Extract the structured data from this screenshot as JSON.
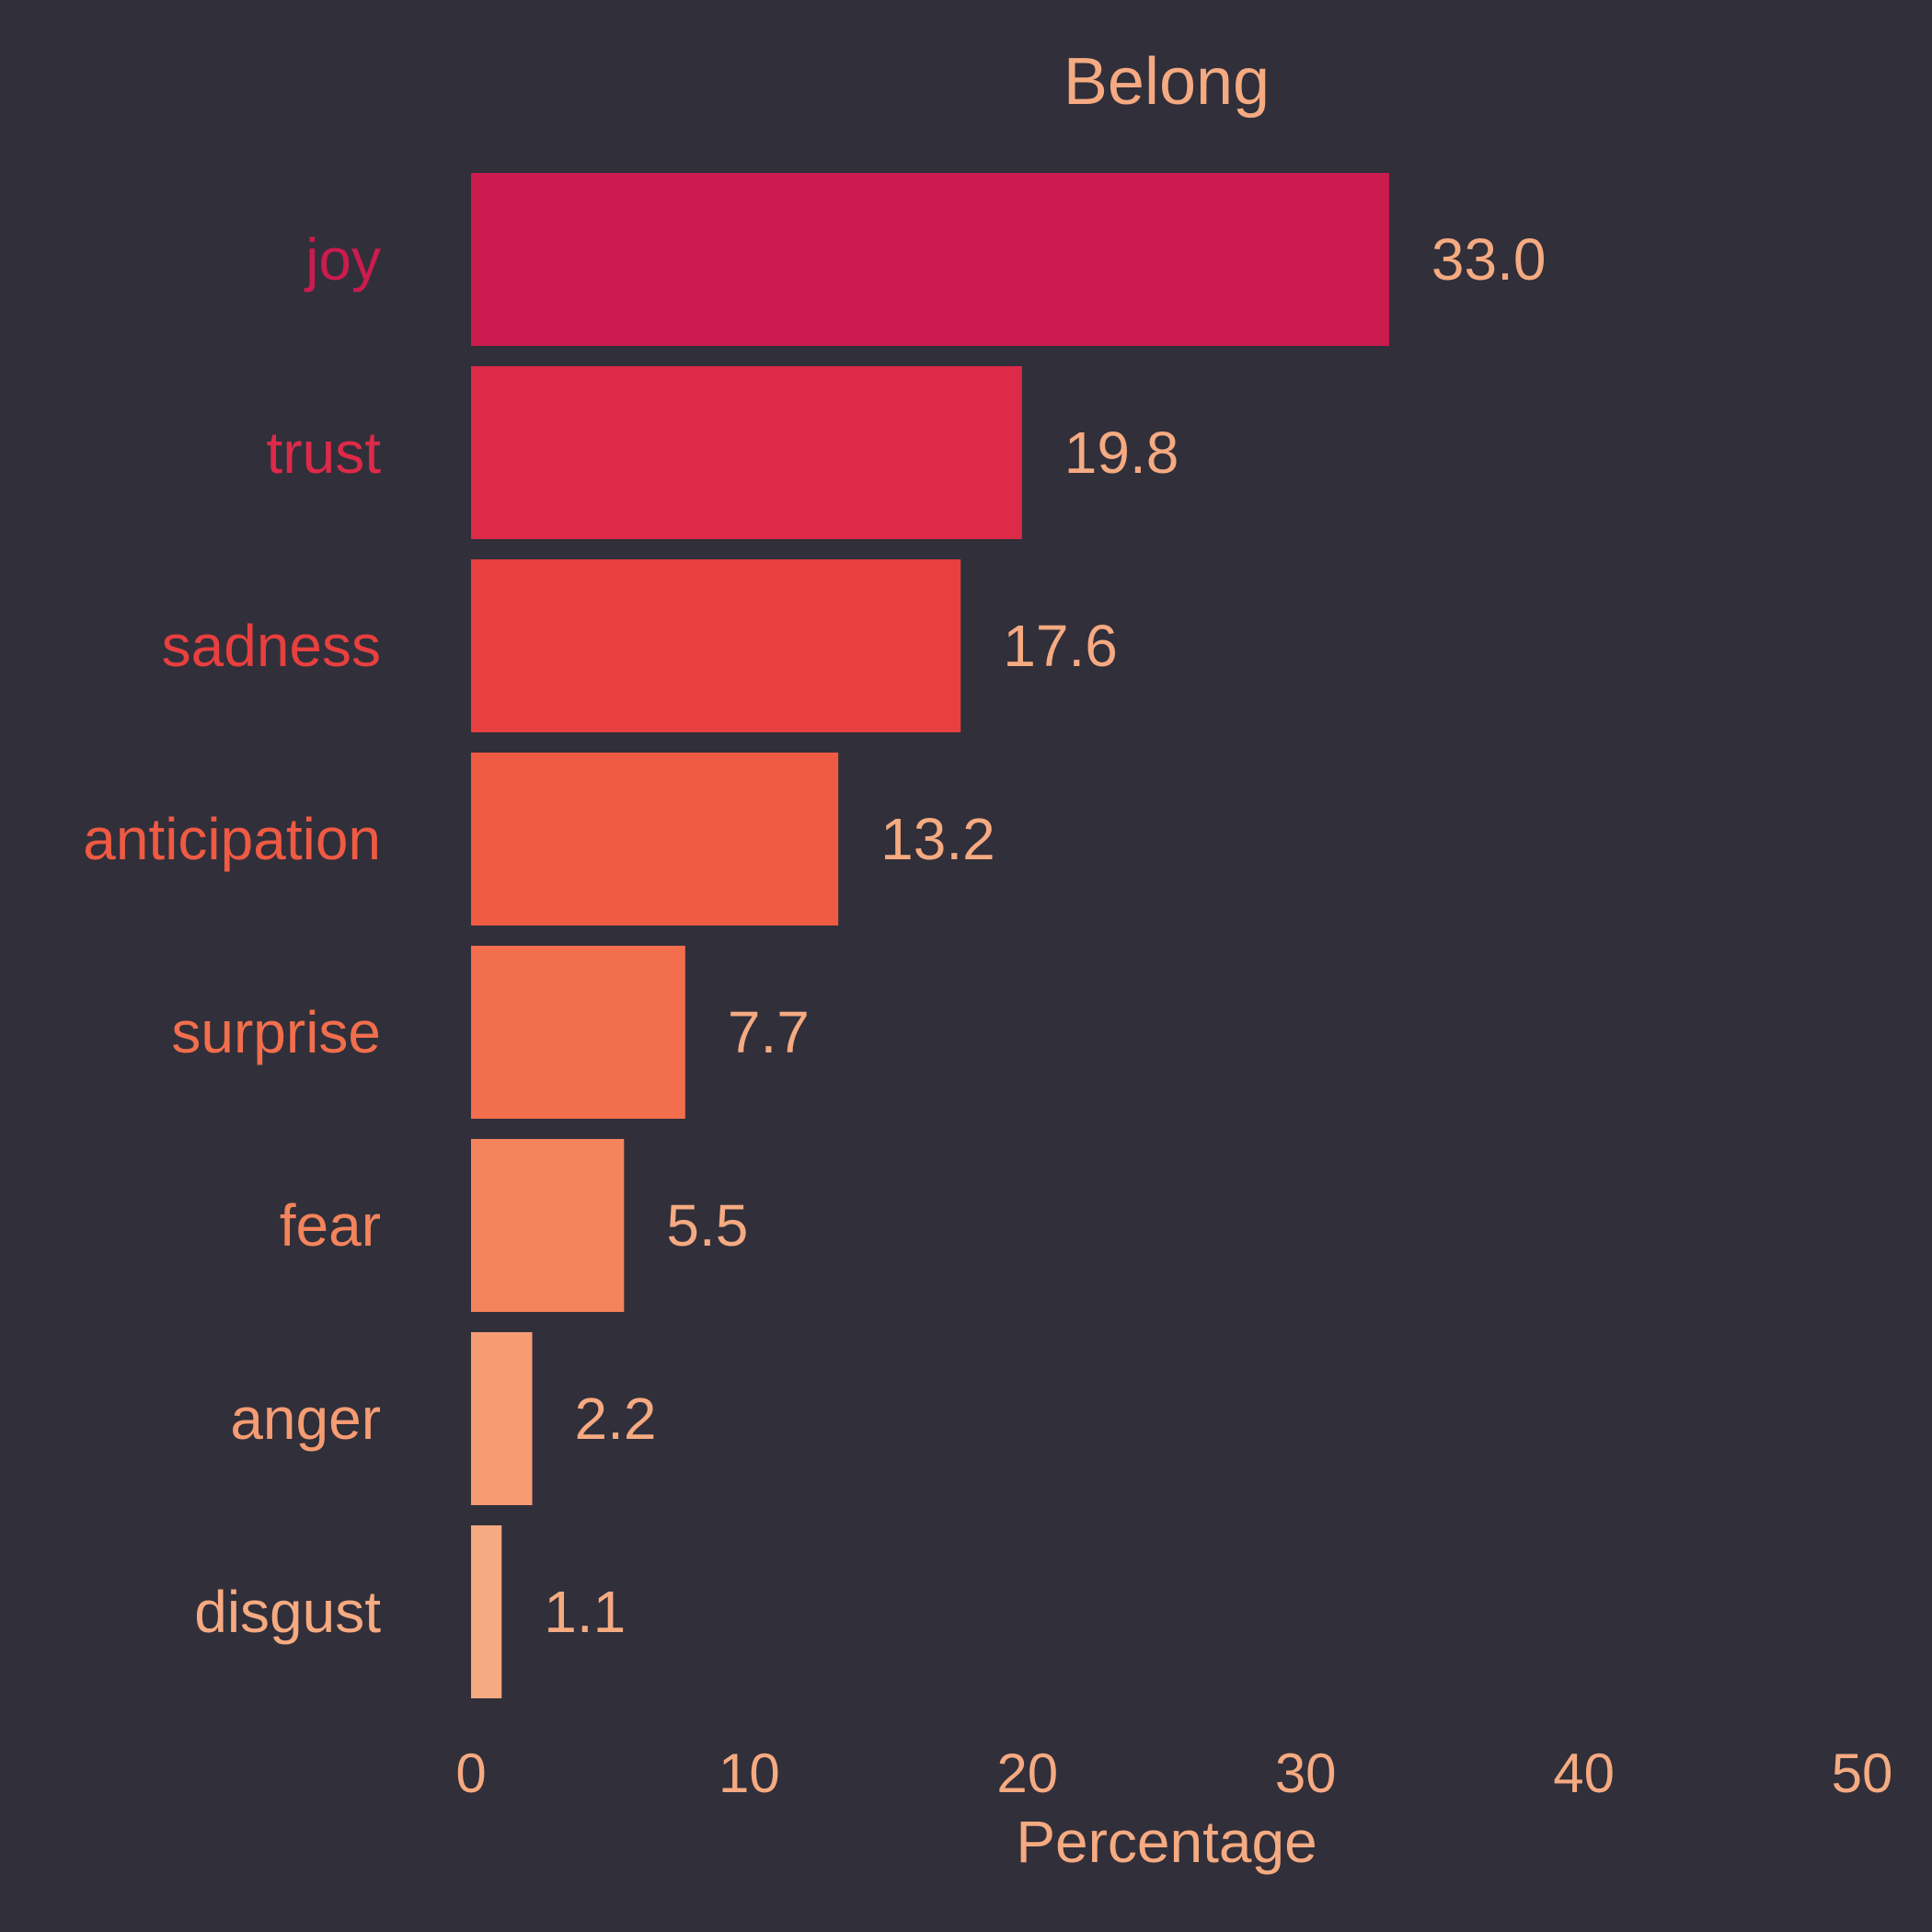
{
  "chart_data": {
    "type": "bar",
    "orientation": "horizontal",
    "title": "Belong",
    "xlabel": "Percentage",
    "ylabel": "",
    "xlim": [
      0,
      50
    ],
    "xticks": [
      "0",
      "10",
      "20",
      "30",
      "40",
      "50"
    ],
    "categories": [
      "joy",
      "trust",
      "sadness",
      "anticipation",
      "surprise",
      "fear",
      "anger",
      "disgust"
    ],
    "values": [
      33.0,
      19.8,
      17.6,
      13.2,
      7.7,
      5.5,
      2.2,
      1.1
    ],
    "value_labels": [
      "33.0",
      "19.8",
      "17.6",
      "13.2",
      "7.7",
      "5.5",
      "2.2",
      "1.1"
    ],
    "bar_colors": [
      "#CB1B4F",
      "#DC2A48",
      "#E83F3F",
      "#EF5A43",
      "#F26E4C",
      "#F4845C",
      "#F69C73",
      "#F5AA81"
    ],
    "grid": false,
    "legend": "none"
  },
  "colors": {
    "background": "#312F3A",
    "text": "#F5AA81"
  }
}
